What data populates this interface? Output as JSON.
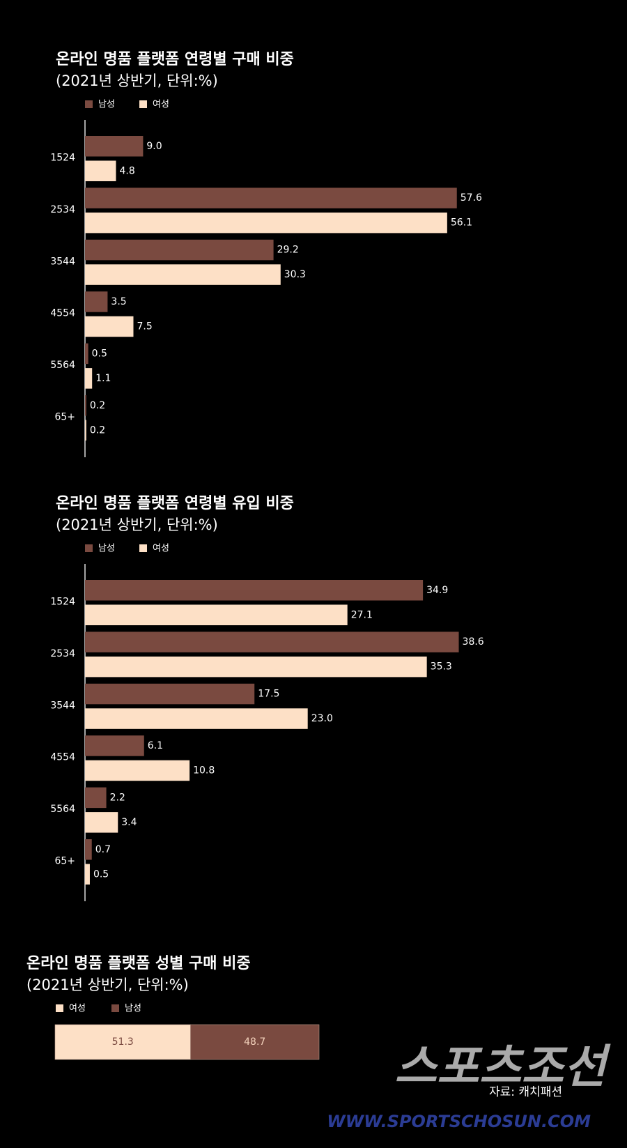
{
  "chart_data": [
    {
      "type": "hbar",
      "title": "온라인 명품 플랫폼 연령별 구매 비중",
      "subtitle": "(2021년 상반기, 단위:%)",
      "categories": [
        "1524",
        "2534",
        "3544",
        "4554",
        "5564",
        "65+"
      ],
      "xlim": [
        0,
        60
      ],
      "series": [
        {
          "name": "남성",
          "color": "#7a4a40",
          "values": [
            9.0,
            57.6,
            29.2,
            3.5,
            0.5,
            0.2
          ],
          "value_labels": [
            "9.0",
            "57.6",
            "29.2",
            "3.5",
            "0.5",
            "0.2"
          ]
        },
        {
          "name": "여성",
          "color": "#fde0c6",
          "values": [
            4.8,
            56.1,
            30.3,
            7.5,
            1.1,
            0.2
          ],
          "value_labels": [
            "4.8",
            "56.1",
            "30.3",
            "7.5",
            "1.1",
            "0.2"
          ]
        }
      ]
    },
    {
      "type": "hbar",
      "title": "온라인 명품 플랫폼 연령별 유입 비중",
      "subtitle": "(2021년 상반기, 단위:%)",
      "categories": [
        "1524",
        "2534",
        "3544",
        "4554",
        "5564",
        "65+"
      ],
      "xlim": [
        0,
        40
      ],
      "series": [
        {
          "name": "남성",
          "color": "#7a4a40",
          "values": [
            34.9,
            38.6,
            17.5,
            6.1,
            2.2,
            0.7
          ],
          "value_labels": [
            "34.9",
            "38.6",
            "17.5",
            "6.1",
            "2.2",
            "0.7"
          ]
        },
        {
          "name": "여성",
          "color": "#fde0c6",
          "values": [
            27.1,
            35.3,
            23.0,
            10.8,
            3.4,
            0.5
          ],
          "value_labels": [
            "27.1",
            "35.3",
            "23.0",
            "10.8",
            "3.4",
            "0.5"
          ]
        }
      ]
    },
    {
      "type": "stacked100",
      "title": "온라인 명품 플랫폼 성별 구매 비중",
      "subtitle": "(2021년 상반기, 단위:%)",
      "xlim": [
        0,
        100
      ],
      "series": [
        {
          "name": "여성",
          "color": "#fde0c6",
          "values": [
            51.3
          ],
          "value_labels": [
            "51.3"
          ]
        },
        {
          "name": "남성",
          "color": "#7a4a40",
          "values": [
            48.7
          ],
          "value_labels": [
            "48.7"
          ]
        }
      ]
    }
  ],
  "source": "자료: 캐치패션",
  "watermark": {
    "logo": "스포츠조선",
    "url": "WWW.SPORTSCHOSUN.COM"
  }
}
